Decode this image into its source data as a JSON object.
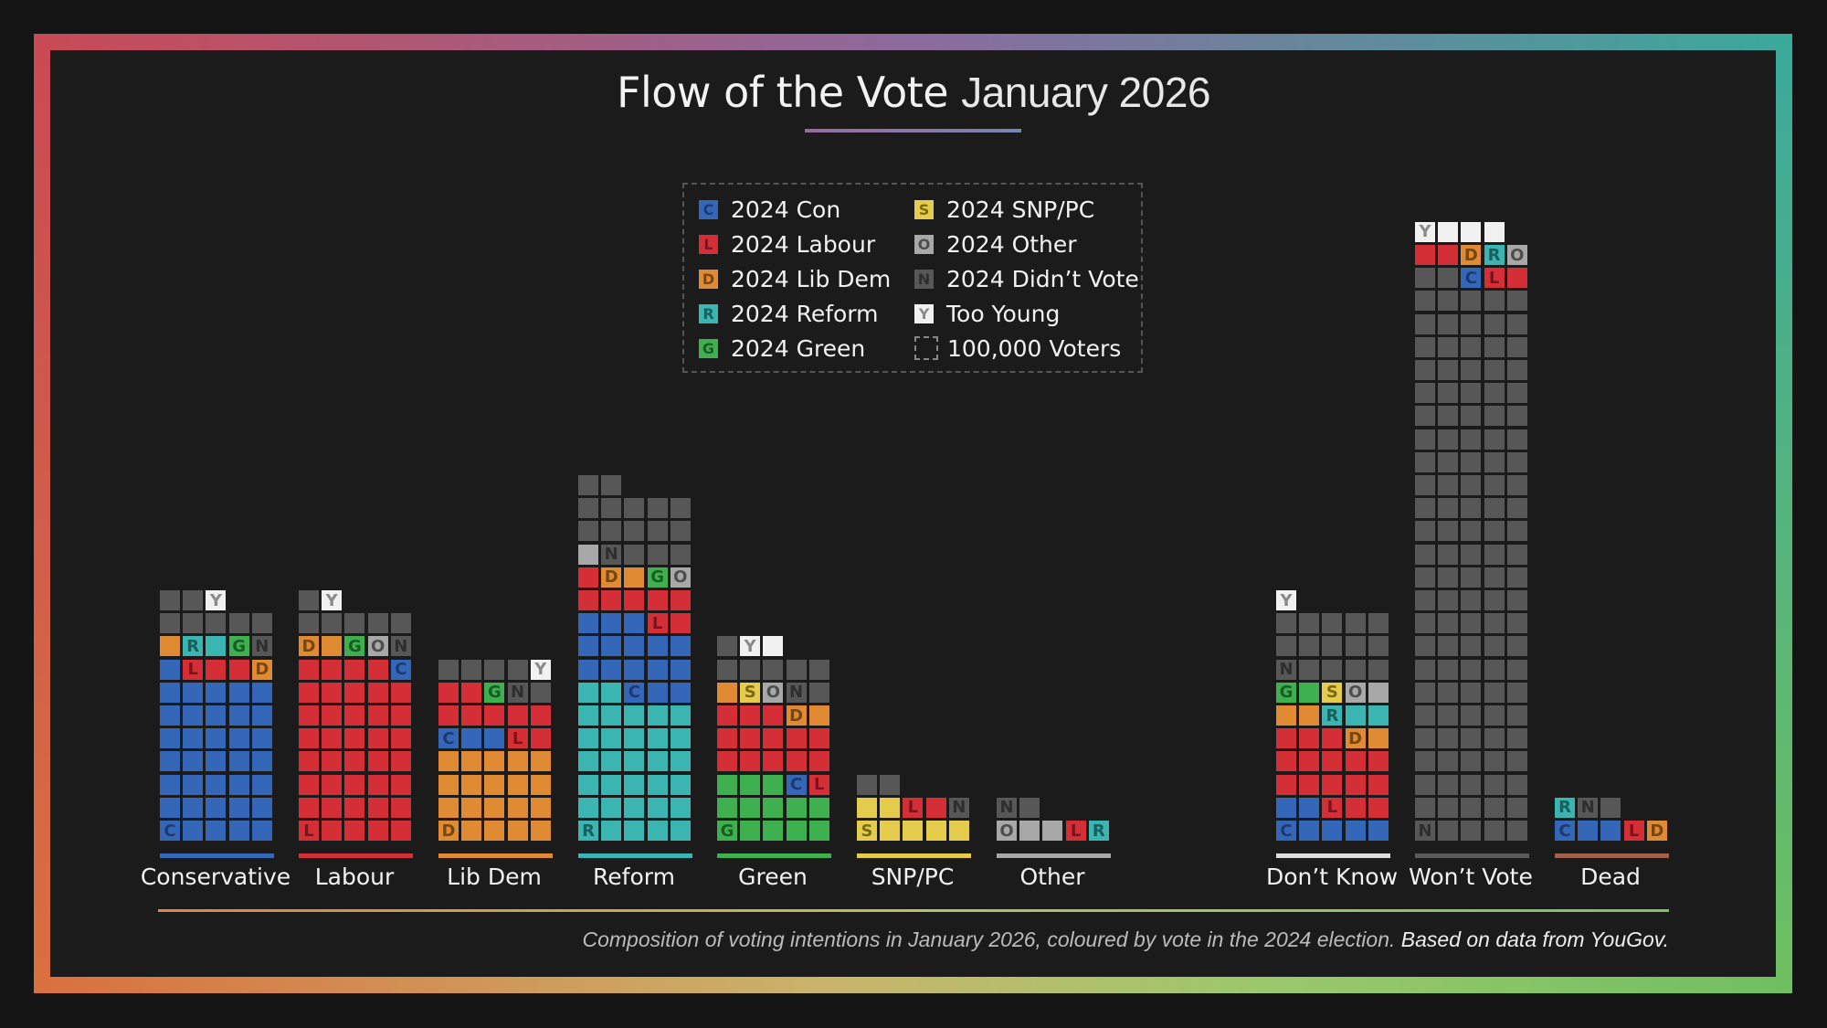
{
  "title": {
    "main": "Flow of the Vote",
    "sub": "January 2026"
  },
  "legend": [
    {
      "key": "C",
      "label": "2024 Con"
    },
    {
      "key": "L",
      "label": "2024 Labour"
    },
    {
      "key": "D",
      "label": "2024 Lib Dem"
    },
    {
      "key": "R",
      "label": "2024 Reform"
    },
    {
      "key": "G",
      "label": "2024 Green"
    },
    {
      "key": "S",
      "label": "2024 SNP/PC"
    },
    {
      "key": "O",
      "label": "2024 Other"
    },
    {
      "key": "N",
      "label": "2024 Didn’t Vote"
    },
    {
      "key": "Y",
      "label": "Too Young"
    },
    {
      "key": "unit",
      "label": "100,000 Voters"
    }
  ],
  "colors": {
    "C": {
      "fill": "#3567b8",
      "text": "#1d3a70"
    },
    "L": {
      "fill": "#d42f37",
      "text": "#7a141a"
    },
    "D": {
      "fill": "#e08b33",
      "text": "#7a4610"
    },
    "R": {
      "fill": "#3ab5b1",
      "text": "#17605d"
    },
    "G": {
      "fill": "#3eb04f",
      "text": "#175e22"
    },
    "S": {
      "fill": "#e6cc4c",
      "text": "#7a6a14"
    },
    "O": {
      "fill": "#a8a8a8",
      "text": "#4e4e4e"
    },
    "N": {
      "fill": "#575757",
      "text": "#2e2e2e"
    },
    "Y": {
      "fill": "#f1f1f1",
      "text": "#8a8a8a"
    }
  },
  "chart_data": {
    "type": "waffle",
    "unit": "100,000 Voters",
    "columns_per_group": 5,
    "groups": [
      {
        "label": "Conservative",
        "bar_color": "#3567b8",
        "segments": [
          [
            "C",
            36
          ],
          [
            "L",
            3
          ],
          [
            "D",
            2
          ],
          [
            "R",
            2
          ],
          [
            "G",
            1
          ],
          [
            "N",
            8
          ],
          [
            "Y",
            1
          ]
        ]
      },
      {
        "label": "Labour",
        "bar_color": "#d42f37",
        "segments": [
          [
            "L",
            39
          ],
          [
            "C",
            1
          ],
          [
            "D",
            2
          ],
          [
            "G",
            1
          ],
          [
            "O",
            1
          ],
          [
            "N",
            7
          ],
          [
            "Y",
            1
          ]
        ]
      },
      {
        "label": "Lib Dem",
        "bar_color": "#e08b33",
        "segments": [
          [
            "D",
            20
          ],
          [
            "C",
            3
          ],
          [
            "L",
            9
          ],
          [
            "G",
            1
          ],
          [
            "N",
            6
          ],
          [
            "Y",
            1
          ]
        ]
      },
      {
        "label": "Reform",
        "bar_color": "#3ab5b1",
        "segments": [
          [
            "R",
            32
          ],
          [
            "C",
            16
          ],
          [
            "L",
            8
          ],
          [
            "D",
            2
          ],
          [
            "G",
            1
          ],
          [
            "O",
            2
          ],
          [
            "N",
            16
          ]
        ]
      },
      {
        "label": "Green",
        "bar_color": "#3eb04f",
        "segments": [
          [
            "G",
            13
          ],
          [
            "C",
            1
          ],
          [
            "L",
            14
          ],
          [
            "D",
            3
          ],
          [
            "S",
            1
          ],
          [
            "O",
            1
          ],
          [
            "N",
            8
          ],
          [
            "Y",
            2
          ]
        ]
      },
      {
        "label": "SNP/PC",
        "bar_color": "#e6cc4c",
        "segments": [
          [
            "S",
            7
          ],
          [
            "L",
            2
          ],
          [
            "N",
            3
          ]
        ]
      },
      {
        "label": "Other",
        "bar_color": "#a8a8a8",
        "segments": [
          [
            "O",
            3
          ],
          [
            "L",
            1
          ],
          [
            "R",
            1
          ],
          [
            "N",
            2
          ]
        ]
      },
      {
        "label": "Don’t Know",
        "bar_color": "#dddddd",
        "segments": [
          [
            "C",
            7
          ],
          [
            "L",
            16
          ],
          [
            "D",
            4
          ],
          [
            "R",
            3
          ],
          [
            "G",
            2
          ],
          [
            "S",
            1
          ],
          [
            "O",
            2
          ],
          [
            "N",
            15
          ],
          [
            "Y",
            1
          ]
        ]
      },
      {
        "label": "Won’t Vote",
        "bar_color": "#5a5a5a",
        "segments": [
          [
            "N",
            122
          ],
          [
            "C",
            1
          ],
          [
            "L",
            4
          ],
          [
            "D",
            1
          ],
          [
            "R",
            1
          ],
          [
            "O",
            1
          ],
          [
            "Y",
            4
          ]
        ]
      },
      {
        "label": "Dead",
        "bar_color": "#a0614a",
        "segments": [
          [
            "C",
            3
          ],
          [
            "L",
            1
          ],
          [
            "D",
            1
          ],
          [
            "R",
            1
          ],
          [
            "N",
            2
          ]
        ]
      }
    ]
  },
  "footnote": {
    "main": "Composition of voting intentions in January 2026, coloured by vote in the 2024 election.",
    "source": "Based on data from YouGov."
  }
}
